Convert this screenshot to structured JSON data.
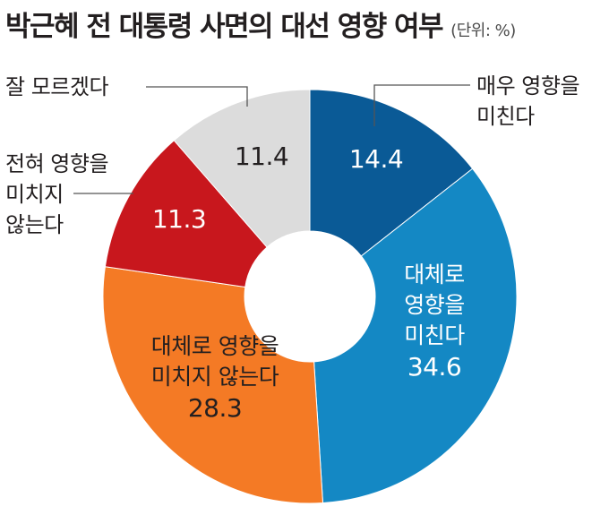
{
  "header": {
    "title": "박근혜 전 대통령 사면의 대선 영향 여부",
    "unit": "(단위: %)"
  },
  "chart_data": {
    "type": "pie",
    "variant": "donut",
    "title": "박근혜 전 대통령 사면의 대선 영향 여부",
    "unit": "(단위: %)",
    "start_angle_deg": 0,
    "direction": "clockwise",
    "slices": [
      {
        "label": "매우 영향을 미친다",
        "value": 14.4,
        "color": "#0a5a96",
        "text_color": "#ffffff"
      },
      {
        "label": "대체로 영향을 미친다",
        "value": 34.6,
        "color": "#1488c4",
        "text_color": "#ffffff"
      },
      {
        "label": "대체로 영향을 미치지 않는다",
        "value": 28.3,
        "color": "#f47a25",
        "text_color": "#231f20"
      },
      {
        "label": "전혀 영향을 미치지 않는다",
        "value": 11.3,
        "color": "#c8171d",
        "text_color": "#ffffff"
      },
      {
        "label": "잘 모르겠다",
        "value": 11.4,
        "color": "#dcdcdc",
        "text_color": "#231f20"
      }
    ],
    "labels": {
      "s0": [
        "매우 영향을",
        "미친다"
      ],
      "s1": [
        "대체로",
        "영향을",
        "미친다"
      ],
      "s2": [
        "대체로 영향을",
        "미치지 않는다"
      ],
      "s3": [
        "전혀 영향을",
        "미치지",
        "않는다"
      ],
      "s4": [
        "잘 모르겠다"
      ]
    },
    "values_display": [
      "14.4",
      "34.6",
      "28.3",
      "11.3",
      "11.4"
    ]
  }
}
